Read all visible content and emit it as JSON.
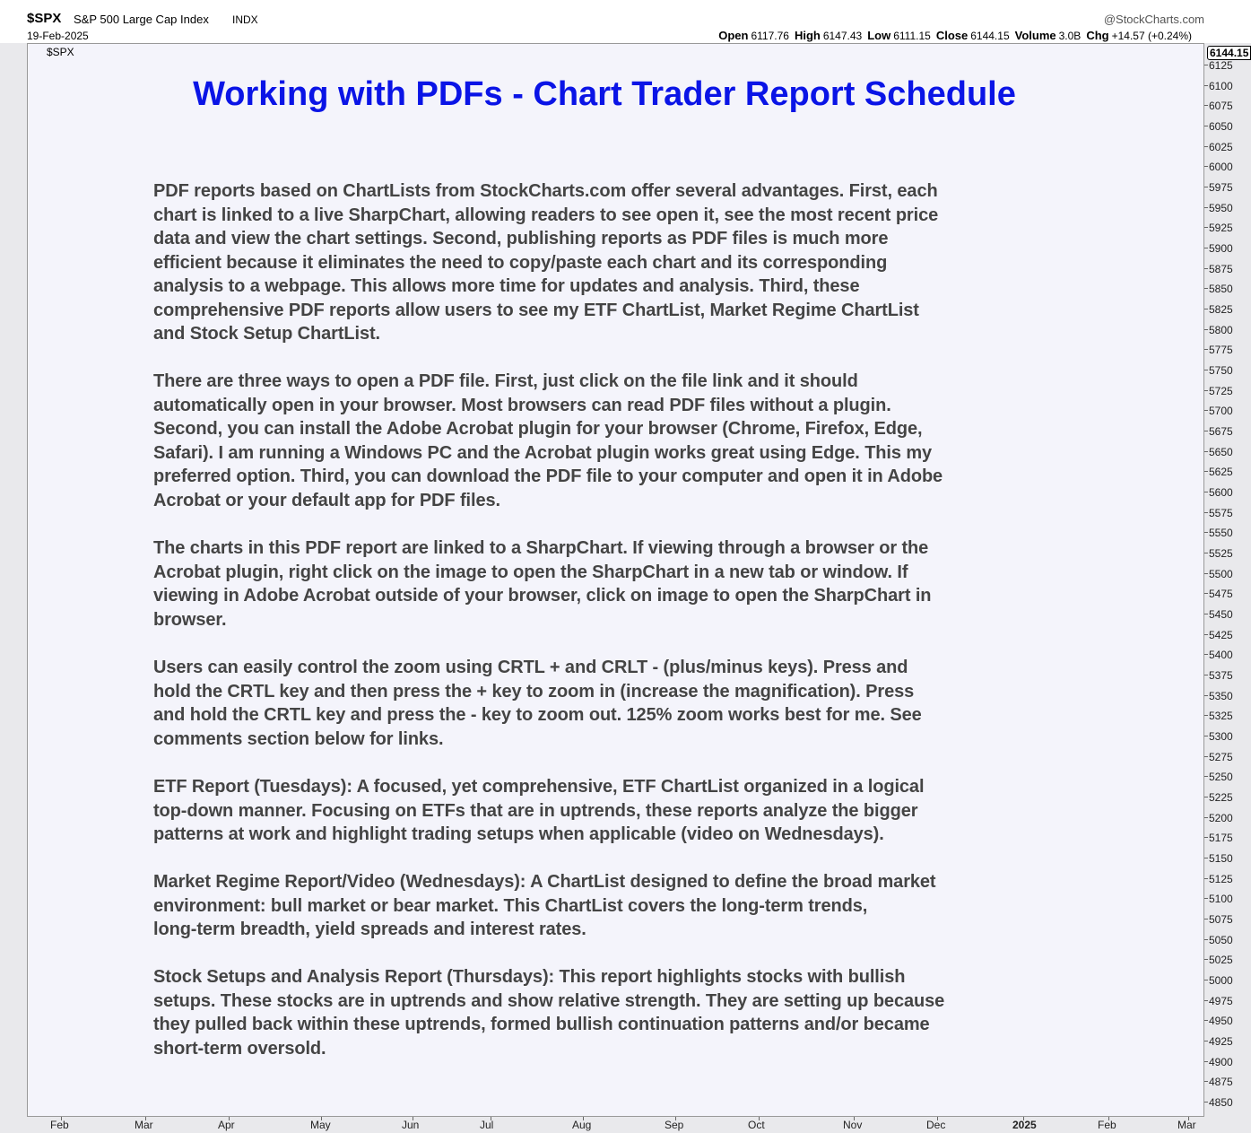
{
  "header": {
    "symbol": "$SPX",
    "name": "S&P 500 Large Cap Index",
    "exchange": "INDX",
    "date": "19-Feb-2025",
    "source": "@StockCharts.com",
    "quote": [
      {
        "label": "Open",
        "value": "6117.76"
      },
      {
        "label": "High",
        "value": "6147.43"
      },
      {
        "label": "Low",
        "value": "6111.15"
      },
      {
        "label": "Close",
        "value": "6144.15"
      },
      {
        "label": "Volume",
        "value": "3.0B"
      },
      {
        "label": "Chg",
        "value": "+14.57 (+0.24%)"
      }
    ]
  },
  "panel_label": "$SPX",
  "last_price": "6144.15",
  "title": "Working with PDFs - Chart Trader Report Schedule",
  "paragraphs": [
    [
      "PDF reports based on ChartLists from StockCharts.com offer several advantages. First, each",
      "chart is linked to a live SharpChart, allowing readers to see open it, see the most recent price",
      "data and view the chart settings. Second, publishing reports as PDF files is much more",
      "efficient because it eliminates the need to copy/paste each chart and its corresponding",
      "analysis to a webpage. This allows more time for updates and analysis. Third, these",
      "comprehensive PDF reports allow users to see my ETF ChartList, Market Regime ChartList",
      "and Stock Setup ChartList."
    ],
    [
      "There are three ways to open a PDF file. First, just click on the file link and it should",
      "automatically open in your browser. Most browsers can read PDF files without a plugin.",
      "Second, you can install the Adobe Acrobat plugin for your browser (Chrome, Firefox, Edge,",
      "Safari). I am running a Windows PC and the Acrobat plugin works great using Edge. This my",
      "preferred option. Third, you can download the PDF file to your computer and open it in Adobe",
      "Acrobat or your default app for PDF files."
    ],
    [
      "The charts in this PDF report are linked to a SharpChart. If viewing through a browser or the",
      "Acrobat plugin, right click on the image to open the SharpChart in a new tab or window. If",
      "viewing in Adobe Acrobat outside of your browser, click on image to open the SharpChart in",
      "browser."
    ],
    [
      "Users can easily control the zoom using CRTL + and CRLT - (plus/minus keys). Press and",
      "hold the CRTL key and then press the + key to zoom in (increase the magnification). Press",
      "and hold the CRTL key and press the - key to zoom out. 125% zoom works best for me. See",
      "comments section below for links."
    ],
    [
      "ETF Report (Tuesdays): A focused, yet comprehensive, ETF ChartList organized in a logical",
      "top-down manner. Focusing on ETFs that are in uptrends, these reports analyze the bigger",
      "patterns at work and highlight trading setups when applicable (video on Wednesdays)."
    ],
    [
      "Market Regime Report/Video (Wednesdays): A ChartList designed to define the broad market",
      "environment: bull market or bear market. This ChartList covers the long-term trends,",
      "long-term breadth, yield spreads and interest rates."
    ],
    [
      "Stock Setups and Analysis Report (Thursdays): This report highlights stocks with bullish",
      "setups. These stocks are in uptrends and show relative strength. They are setting up because",
      "they pulled back within these uptrends, formed bullish continuation patterns and/or became",
      "short-term oversold."
    ]
  ],
  "y_axis": [
    6125,
    6100,
    6075,
    6050,
    6025,
    6000,
    5975,
    5950,
    5925,
    5900,
    5875,
    5850,
    5825,
    5800,
    5775,
    5750,
    5725,
    5700,
    5675,
    5650,
    5625,
    5600,
    5575,
    5550,
    5525,
    5500,
    5475,
    5450,
    5425,
    5400,
    5375,
    5350,
    5325,
    5300,
    5275,
    5250,
    5225,
    5200,
    5175,
    5150,
    5125,
    5100,
    5075,
    5050,
    5025,
    5000,
    4975,
    4950,
    4925,
    4900,
    4875,
    4850
  ],
  "x_axis": [
    "Feb",
    "Mar",
    "Apr",
    "May",
    "Jun",
    "Jul",
    "Aug",
    "Sep",
    "Oct",
    "Nov",
    "Dec",
    "2025",
    "Feb",
    "Mar"
  ]
}
